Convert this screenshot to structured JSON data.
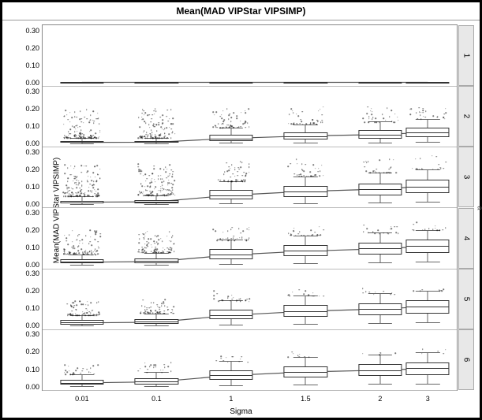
{
  "title": "Mean(MAD VIPStar VIPSIMP)",
  "ylabel": "Mean(MAD VIPStar VIPSIMP)",
  "xlabel": "Sigma",
  "group_var": "a",
  "x_tick_labels": [
    "0.01",
    "0.1",
    "1",
    "1.5",
    "2",
    "3"
  ],
  "y_ticks": [
    0.0,
    0.1,
    0.2,
    0.3
  ],
  "ylim": [
    -0.02,
    0.33
  ],
  "background_color": "#ffffff",
  "grid_color": "#dddddd",
  "border_color": "#888888",
  "line_color": "#555555",
  "box_fill": "#ffffff",
  "box_border": "#333333",
  "panel_label_bg": "#e8e8e8",
  "title_fontsize": 12,
  "tick_fontsize": 9,
  "label_fontsize": 10,
  "box_rel_width": 0.105,
  "x_positions": [
    0.095,
    0.275,
    0.455,
    0.635,
    0.815,
    0.93
  ],
  "panels": [
    {
      "label": "1",
      "type": "flatline",
      "flat_y": 0.001,
      "boxes": [
        {
          "q1": 0.0,
          "med": 0.0,
          "q3": 0.002,
          "lo": 0.0,
          "hi": 0.003,
          "outliers": {
            "n": 0
          }
        },
        {
          "q1": 0.0,
          "med": 0.0,
          "q3": 0.002,
          "lo": 0.0,
          "hi": 0.003,
          "outliers": {
            "n": 0
          }
        },
        {
          "q1": 0.0,
          "med": 0.001,
          "q3": 0.002,
          "lo": 0.0,
          "hi": 0.003,
          "outliers": {
            "n": 0
          }
        },
        {
          "q1": 0.0,
          "med": 0.001,
          "q3": 0.002,
          "lo": 0.0,
          "hi": 0.003,
          "outliers": {
            "n": 0
          }
        },
        {
          "q1": 0.0,
          "med": 0.001,
          "q3": 0.002,
          "lo": 0.0,
          "hi": 0.003,
          "outliers": {
            "n": 0
          }
        },
        {
          "q1": 0.0,
          "med": 0.001,
          "q3": 0.002,
          "lo": 0.0,
          "hi": 0.003,
          "outliers": {
            "n": 0
          }
        }
      ]
    },
    {
      "label": "2",
      "type": "boxplot",
      "line_y": [
        0.005,
        0.006,
        0.028,
        0.042,
        0.05,
        0.062
      ],
      "boxes": [
        {
          "q1": 0.002,
          "med": 0.005,
          "q3": 0.012,
          "lo": 0.0,
          "hi": 0.03,
          "outliers": {
            "n": 120,
            "lo": 0.03,
            "hi": 0.2
          }
        },
        {
          "q1": 0.002,
          "med": 0.006,
          "q3": 0.014,
          "lo": 0.0,
          "hi": 0.032,
          "outliers": {
            "n": 115,
            "lo": 0.03,
            "hi": 0.2
          }
        },
        {
          "q1": 0.015,
          "med": 0.028,
          "q3": 0.048,
          "lo": 0.002,
          "hi": 0.09,
          "outliers": {
            "n": 60,
            "lo": 0.09,
            "hi": 0.21
          }
        },
        {
          "q1": 0.022,
          "med": 0.042,
          "q3": 0.065,
          "lo": 0.004,
          "hi": 0.11,
          "outliers": {
            "n": 40,
            "lo": 0.11,
            "hi": 0.21
          }
        },
        {
          "q1": 0.028,
          "med": 0.05,
          "q3": 0.075,
          "lo": 0.005,
          "hi": 0.125,
          "outliers": {
            "n": 30,
            "lo": 0.12,
            "hi": 0.21
          }
        },
        {
          "q1": 0.035,
          "med": 0.062,
          "q3": 0.09,
          "lo": 0.007,
          "hi": 0.14,
          "outliers": {
            "n": 25,
            "lo": 0.14,
            "hi": 0.22
          }
        }
      ]
    },
    {
      "label": "3",
      "type": "boxplot",
      "line_y": [
        0.01,
        0.012,
        0.05,
        0.072,
        0.085,
        0.102
      ],
      "boxes": [
        {
          "q1": 0.004,
          "med": 0.01,
          "q3": 0.02,
          "lo": 0.0,
          "hi": 0.045,
          "outliers": {
            "n": 140,
            "lo": 0.045,
            "hi": 0.23
          }
        },
        {
          "q1": 0.005,
          "med": 0.012,
          "q3": 0.024,
          "lo": 0.0,
          "hi": 0.05,
          "outliers": {
            "n": 130,
            "lo": 0.05,
            "hi": 0.23
          }
        },
        {
          "q1": 0.028,
          "med": 0.05,
          "q3": 0.08,
          "lo": 0.004,
          "hi": 0.13,
          "outliers": {
            "n": 50,
            "lo": 0.13,
            "hi": 0.25
          }
        },
        {
          "q1": 0.042,
          "med": 0.072,
          "q3": 0.105,
          "lo": 0.007,
          "hi": 0.16,
          "outliers": {
            "n": 35,
            "lo": 0.16,
            "hi": 0.26
          }
        },
        {
          "q1": 0.05,
          "med": 0.085,
          "q3": 0.12,
          "lo": 0.01,
          "hi": 0.18,
          "outliers": {
            "n": 25,
            "lo": 0.18,
            "hi": 0.27
          }
        },
        {
          "q1": 0.062,
          "med": 0.102,
          "q3": 0.14,
          "lo": 0.013,
          "hi": 0.2,
          "outliers": {
            "n": 20,
            "lo": 0.2,
            "hi": 0.28
          }
        }
      ]
    },
    {
      "label": "4",
      "type": "boxplot",
      "line_y": [
        0.018,
        0.022,
        0.06,
        0.082,
        0.095,
        0.11
      ],
      "boxes": [
        {
          "q1": 0.008,
          "med": 0.018,
          "q3": 0.032,
          "lo": 0.001,
          "hi": 0.062,
          "outliers": {
            "n": 110,
            "lo": 0.06,
            "hi": 0.2
          }
        },
        {
          "q1": 0.01,
          "med": 0.022,
          "q3": 0.038,
          "lo": 0.001,
          "hi": 0.07,
          "outliers": {
            "n": 100,
            "lo": 0.07,
            "hi": 0.2
          }
        },
        {
          "q1": 0.035,
          "med": 0.06,
          "q3": 0.092,
          "lo": 0.006,
          "hi": 0.145,
          "outliers": {
            "n": 40,
            "lo": 0.14,
            "hi": 0.22
          }
        },
        {
          "q1": 0.05,
          "med": 0.082,
          "q3": 0.115,
          "lo": 0.01,
          "hi": 0.17,
          "outliers": {
            "n": 25,
            "lo": 0.17,
            "hi": 0.23
          }
        },
        {
          "q1": 0.058,
          "med": 0.095,
          "q3": 0.128,
          "lo": 0.013,
          "hi": 0.185,
          "outliers": {
            "n": 18,
            "lo": 0.18,
            "hi": 0.24
          }
        },
        {
          "q1": 0.07,
          "med": 0.11,
          "q3": 0.145,
          "lo": 0.017,
          "hi": 0.2,
          "outliers": {
            "n": 14,
            "lo": 0.2,
            "hi": 0.25
          }
        }
      ]
    },
    {
      "label": "5",
      "type": "boxplot",
      "line_y": [
        0.018,
        0.022,
        0.062,
        0.085,
        0.098,
        0.112
      ],
      "boxes": [
        {
          "q1": 0.008,
          "med": 0.018,
          "q3": 0.032,
          "lo": 0.001,
          "hi": 0.062,
          "outliers": {
            "n": 70,
            "lo": 0.06,
            "hi": 0.15
          }
        },
        {
          "q1": 0.01,
          "med": 0.022,
          "q3": 0.038,
          "lo": 0.001,
          "hi": 0.07,
          "outliers": {
            "n": 65,
            "lo": 0.07,
            "hi": 0.15
          }
        },
        {
          "q1": 0.036,
          "med": 0.062,
          "q3": 0.094,
          "lo": 0.006,
          "hi": 0.147,
          "outliers": {
            "n": 25,
            "lo": 0.14,
            "hi": 0.2
          }
        },
        {
          "q1": 0.052,
          "med": 0.085,
          "q3": 0.118,
          "lo": 0.011,
          "hi": 0.172,
          "outliers": {
            "n": 15,
            "lo": 0.17,
            "hi": 0.21
          }
        },
        {
          "q1": 0.06,
          "med": 0.098,
          "q3": 0.13,
          "lo": 0.014,
          "hi": 0.187,
          "outliers": {
            "n": 10,
            "lo": 0.18,
            "hi": 0.22
          }
        },
        {
          "q1": 0.072,
          "med": 0.112,
          "q3": 0.147,
          "lo": 0.018,
          "hi": 0.203,
          "outliers": {
            "n": 8,
            "lo": 0.2,
            "hi": 0.23
          }
        }
      ]
    },
    {
      "label": "6",
      "type": "boxplot",
      "line_y": [
        0.022,
        0.028,
        0.065,
        0.085,
        0.095,
        0.105
      ],
      "boxes": [
        {
          "q1": 0.01,
          "med": 0.022,
          "q3": 0.038,
          "lo": 0.001,
          "hi": 0.07,
          "outliers": {
            "n": 25,
            "lo": 0.07,
            "hi": 0.13
          }
        },
        {
          "q1": 0.013,
          "med": 0.028,
          "q3": 0.046,
          "lo": 0.002,
          "hi": 0.082,
          "outliers": {
            "n": 22,
            "lo": 0.08,
            "hi": 0.14
          }
        },
        {
          "q1": 0.038,
          "med": 0.065,
          "q3": 0.095,
          "lo": 0.007,
          "hi": 0.148,
          "outliers": {
            "n": 12,
            "lo": 0.14,
            "hi": 0.18
          }
        },
        {
          "q1": 0.052,
          "med": 0.085,
          "q3": 0.118,
          "lo": 0.011,
          "hi": 0.172,
          "outliers": {
            "n": 8,
            "lo": 0.17,
            "hi": 0.2
          }
        },
        {
          "q1": 0.06,
          "med": 0.095,
          "q3": 0.128,
          "lo": 0.014,
          "hi": 0.185,
          "outliers": {
            "n": 6,
            "lo": 0.18,
            "hi": 0.21
          }
        },
        {
          "q1": 0.068,
          "med": 0.105,
          "q3": 0.14,
          "lo": 0.017,
          "hi": 0.198,
          "outliers": {
            "n": 5,
            "lo": 0.19,
            "hi": 0.22
          }
        }
      ]
    }
  ]
}
